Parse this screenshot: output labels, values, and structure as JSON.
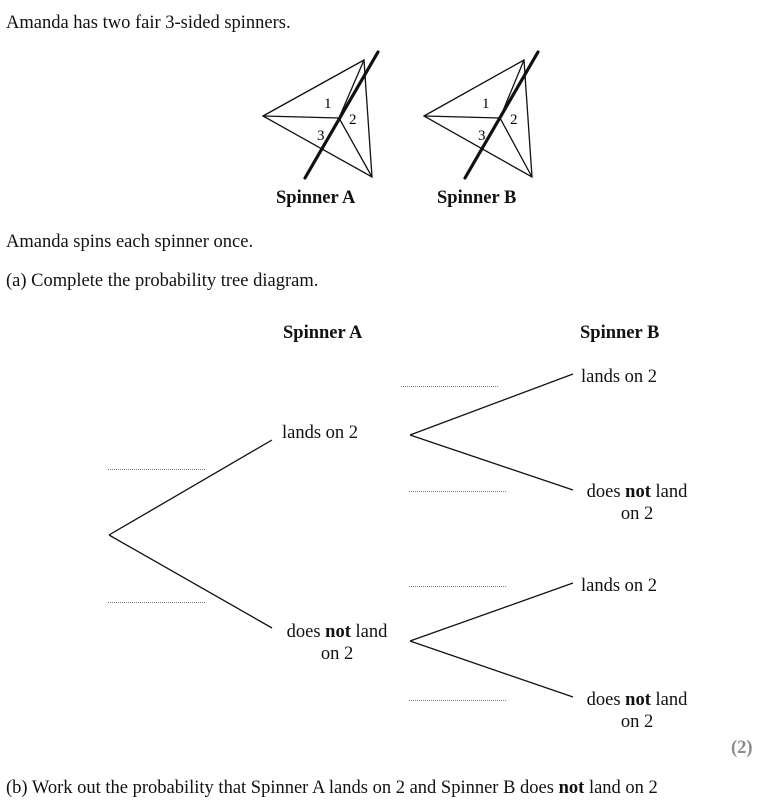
{
  "intro": "Amanda has two fair 3-sided spinners.",
  "spinners": [
    {
      "label": "Spinner A",
      "numbers": [
        "1",
        "2",
        "3"
      ]
    },
    {
      "label": "Spinner B",
      "numbers": [
        "1",
        "2",
        "3"
      ]
    }
  ],
  "spin_text": "Amanda spins each spinner once.",
  "part_a": "(a) Complete the probability tree diagram.",
  "tree": {
    "header_a": "Spinner A",
    "header_b": "Spinner B",
    "a_lands": "lands on 2",
    "a_not_pre": "does ",
    "a_not_bold": "not",
    "a_not_post": " land",
    "a_not_line2": "on 2",
    "b_lands": "lands on 2",
    "b_not_pre": "does ",
    "b_not_bold": "not",
    "b_not_post": " land",
    "b_not_line2": "on 2"
  },
  "marks": "(2)",
  "part_b": {
    "pre": "(b) Work out the probability that Spinner A lands on 2 and Spinner B does ",
    "bold": "not",
    "post": " land on 2"
  }
}
